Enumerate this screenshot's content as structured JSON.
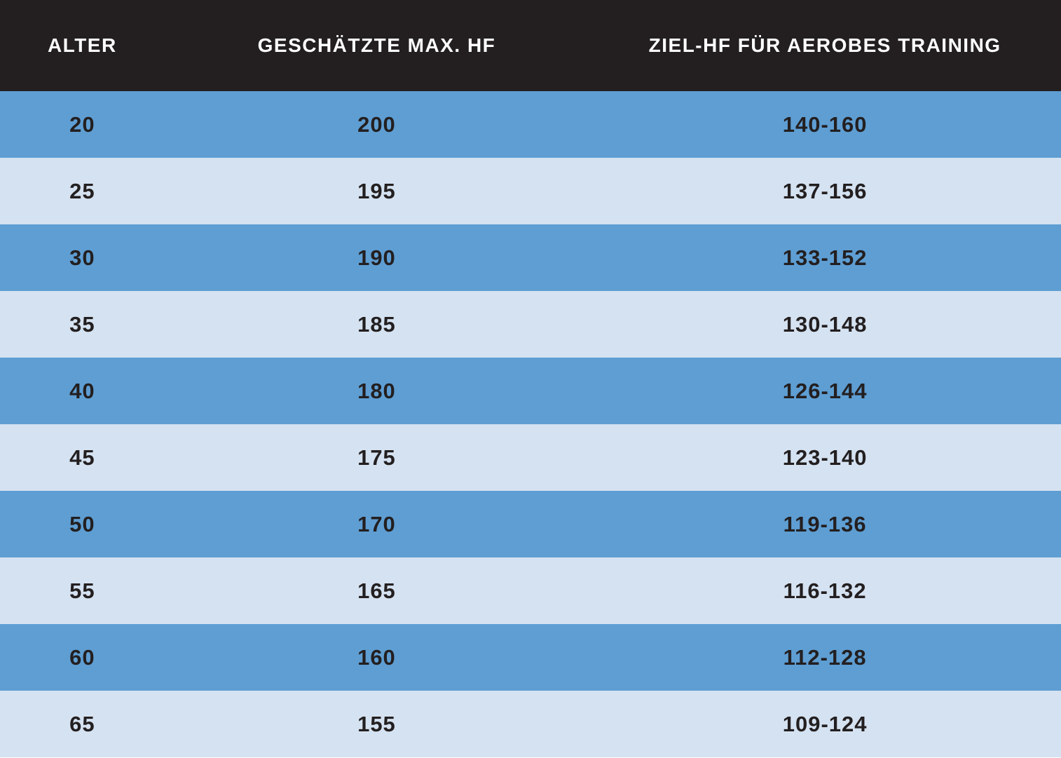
{
  "chart_data": {
    "type": "table",
    "title": "",
    "columns": [
      "ALTER",
      "GESCHÄTZTE MAX. HF",
      "ZIEL-HF FÜR AEROBES TRAINING"
    ],
    "rows": [
      [
        "20",
        "200",
        "140-160"
      ],
      [
        "25",
        "195",
        "137-156"
      ],
      [
        "30",
        "190",
        "133-152"
      ],
      [
        "35",
        "185",
        "130-148"
      ],
      [
        "40",
        "180",
        "126-144"
      ],
      [
        "45",
        "175",
        "123-140"
      ],
      [
        "50",
        "170",
        "119-136"
      ],
      [
        "55",
        "165",
        "116-132"
      ],
      [
        "60",
        "160",
        "112-128"
      ],
      [
        "65",
        "155",
        "109-124"
      ]
    ],
    "layout_hints": {
      "header_background": "#231f20",
      "header_text_color": "#ffffff",
      "row_color_odd": "#5e9ed3",
      "row_color_even": "#d5e2f1",
      "body_text_color": "#231f20",
      "grid": false
    }
  },
  "table": {
    "headers": [
      "ALTER",
      "GESCHÄTZTE MAX. HF",
      "ZIEL-HF FÜR AEROBES TRAINING"
    ]
  },
  "colors": {
    "header_bg": "#231f20",
    "header_text": "#ffffff",
    "row_blue": "#5e9ed3",
    "row_light": "#d5e2f1",
    "body_text": "#231f20"
  }
}
